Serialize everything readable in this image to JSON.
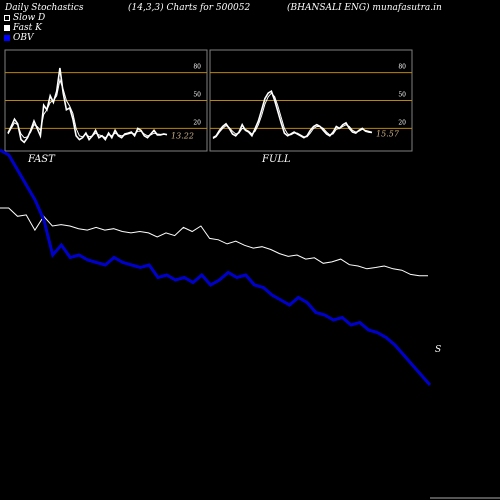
{
  "header": {
    "left": "Daily Stochastics",
    "params": "(14,3,3) Charts for 500052",
    "right": "(BHANSALI ENG) munafasutra.in"
  },
  "legend": [
    {
      "label": "Slow  D",
      "color": "#ffffff",
      "filled": false
    },
    {
      "label": "Fast K",
      "color": "#ffffff",
      "filled": true
    },
    {
      "label": "OBV",
      "color": "#0000ff",
      "filled": true
    }
  ],
  "colors": {
    "background": "#000000",
    "panel_border": "#808080",
    "level_line": "#b8860b",
    "obv": "#0000cc",
    "price": "#ffffff"
  },
  "chart_data": [
    {
      "type": "line",
      "panel": "fast",
      "label": "FAST",
      "ylim": [
        0,
        100
      ],
      "levels": [
        80,
        50,
        20
      ],
      "last_value_label": "13.22",
      "series": [
        {
          "name": "Fast K",
          "values": [
            15,
            22,
            30,
            25,
            8,
            5,
            10,
            18,
            28,
            20,
            12,
            45,
            40,
            55,
            48,
            60,
            85,
            58,
            40,
            42,
            30,
            12,
            8,
            10,
            15,
            8,
            12,
            18,
            10,
            12,
            8,
            15,
            10,
            18,
            12,
            10,
            14,
            15,
            16,
            12,
            20,
            18,
            12,
            10,
            14,
            18,
            13,
            13,
            14,
            13.22
          ]
        },
        {
          "name": "Slow D",
          "values": [
            14,
            20,
            26,
            24,
            14,
            10,
            11,
            16,
            24,
            22,
            18,
            35,
            40,
            48,
            50,
            55,
            72,
            62,
            50,
            44,
            36,
            20,
            12,
            11,
            14,
            11,
            12,
            15,
            13,
            12,
            10,
            13,
            12,
            15,
            13,
            12,
            13,
            14,
            15,
            14,
            17,
            17,
            14,
            12,
            13,
            15,
            14,
            13.5,
            13.5,
            13.4
          ]
        }
      ]
    },
    {
      "type": "line",
      "panel": "full",
      "label": "FULL",
      "ylim": [
        0,
        100
      ],
      "levels": [
        80,
        50,
        20
      ],
      "last_value_label": "15.57",
      "series": [
        {
          "name": "Full K",
          "values": [
            10,
            12,
            18,
            22,
            25,
            20,
            14,
            12,
            16,
            24,
            18,
            16,
            12,
            20,
            28,
            40,
            52,
            58,
            60,
            50,
            38,
            26,
            15,
            12,
            14,
            16,
            14,
            12,
            10,
            12,
            18,
            22,
            24,
            22,
            18,
            14,
            12,
            16,
            22,
            20,
            24,
            26,
            20,
            16,
            15,
            18,
            20,
            17,
            16,
            15.57
          ]
        },
        {
          "name": "Full D",
          "values": [
            9,
            11,
            16,
            20,
            23,
            21,
            17,
            14,
            15,
            20,
            19,
            17,
            14,
            17,
            24,
            34,
            46,
            54,
            58,
            54,
            44,
            32,
            20,
            14,
            13,
            15,
            15,
            13,
            11,
            11,
            15,
            20,
            22,
            22,
            20,
            16,
            13,
            14,
            19,
            20,
            22,
            24,
            22,
            18,
            16,
            17,
            19,
            18,
            17,
            16
          ]
        }
      ]
    },
    {
      "type": "line",
      "panel": "obv",
      "end_label": "S",
      "series": [
        {
          "name": "OBV",
          "values": [
            100,
            98,
            92,
            86,
            80,
            72,
            58,
            62,
            57,
            58,
            56,
            55,
            54,
            57,
            55,
            54,
            53,
            54,
            49,
            50,
            48,
            49,
            47,
            50,
            46,
            48,
            51,
            49,
            50,
            46,
            45,
            42,
            40,
            38,
            41,
            39,
            35,
            34,
            32,
            33,
            30,
            31,
            28,
            27,
            25,
            22,
            18,
            14,
            10,
            6
          ]
        },
        {
          "name": "Price",
          "values": [
            100,
            100,
            94,
            95,
            84,
            94,
            87,
            88,
            87,
            85,
            84,
            86,
            84,
            85,
            83,
            82,
            83,
            82,
            79,
            82,
            80,
            86,
            83,
            87,
            78,
            77,
            74,
            76,
            73,
            71,
            72,
            70,
            67,
            65,
            66,
            63,
            64,
            60,
            61,
            63,
            59,
            58,
            56,
            57,
            58,
            56,
            55,
            52,
            51,
            51
          ]
        }
      ]
    }
  ]
}
